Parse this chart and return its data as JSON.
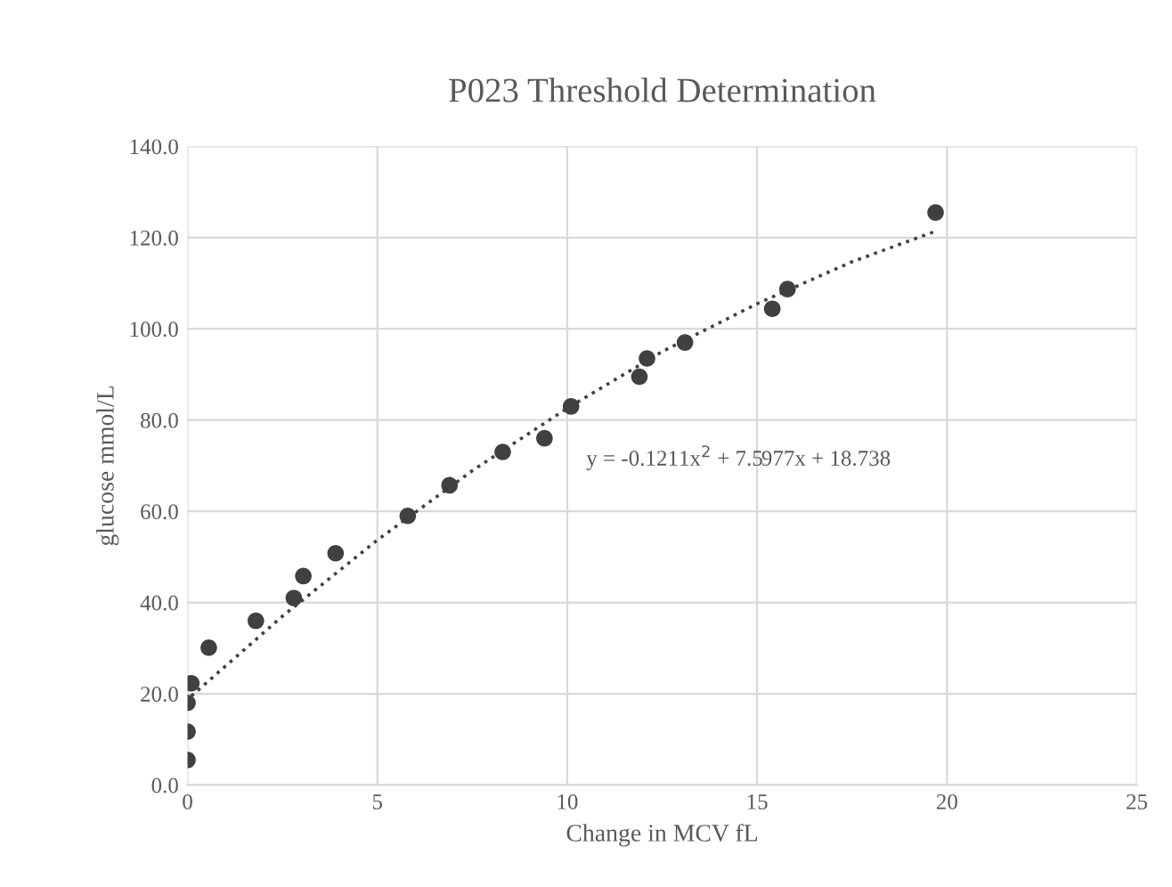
{
  "chart_data": {
    "type": "scatter",
    "title": "P023 Threshold Determination",
    "xlabel": "Change in MCV fL",
    "ylabel": "glucose mmol/L",
    "series": [
      {
        "color": "#404040",
        "marker": "circle",
        "x": [
          0,
          0,
          0,
          0.1,
          0.56,
          1.8,
          2.8,
          3.05,
          3.9,
          5.8,
          6.9,
          8.3,
          9.4,
          10.1,
          11.9,
          12.1,
          13.1,
          15.4,
          15.8,
          19.7
        ],
        "values": [
          5.5,
          11.7,
          18.0,
          22.3,
          30.1,
          36.0,
          41.0,
          45.8,
          50.8,
          59.0,
          65.7,
          73.0,
          76.0,
          83.0,
          89.5,
          93.5,
          97.0,
          104.4,
          108.7,
          125.5
        ]
      },
      {
        "type": "line",
        "color": "#404040",
        "line_style": "dotted",
        "marker": "none",
        "x": [
          0.1,
          2.5,
          5,
          7.5,
          10,
          12.5,
          15,
          17.5,
          19.7
        ],
        "values": [
          19.5,
          37.0,
          53.7,
          68.9,
          82.6,
          95.0,
          105.5,
          114.7,
          121.4
        ]
      }
    ],
    "annotations": [
      "y = -0.1211x$^{2}$ + 7.5977x + 18.738"
    ],
    "xlim": [
      0,
      25
    ],
    "xticks": [
      0,
      5,
      10,
      15,
      20,
      25
    ],
    "ylim": [
      0,
      140
    ],
    "yticks": [
      {
        "value": 0,
        "label": "0.0"
      },
      {
        "value": 20,
        "label": "20.0"
      },
      {
        "value": 40,
        "label": "40.0"
      },
      {
        "value": 60,
        "label": "60.0"
      },
      {
        "value": 80,
        "label": "80.0"
      },
      {
        "value": 100,
        "label": "100.0"
      },
      {
        "value": 120,
        "label": "120.0"
      },
      {
        "value": 140,
        "label": "140.0"
      }
    ],
    "grid": true,
    "legend": false
  }
}
